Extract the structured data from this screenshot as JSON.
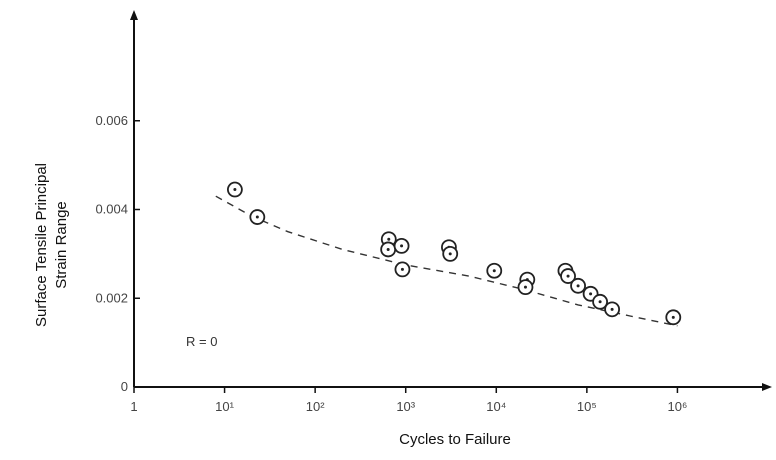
{
  "chart_data": {
    "type": "scatter",
    "title": "",
    "xlabel": "Cycles to Failure",
    "ylabel_lines": [
      "Surface Tensile Principal",
      "Strain Range"
    ],
    "x_scale": "log",
    "xlim": [
      1,
      10000000
    ],
    "ylim": [
      0,
      0.008
    ],
    "x_ticks": [
      {
        "value": 1,
        "label": "1"
      },
      {
        "value": 10,
        "label": "10¹"
      },
      {
        "value": 100,
        "label": "10²"
      },
      {
        "value": 1000,
        "label": "10³"
      },
      {
        "value": 10000,
        "label": "10⁴"
      },
      {
        "value": 100000,
        "label": "10⁵"
      },
      {
        "value": 1000000,
        "label": "10⁶"
      }
    ],
    "y_ticks": [
      {
        "value": 0,
        "label": "0"
      },
      {
        "value": 0.002,
        "label": "0.002"
      },
      {
        "value": 0.004,
        "label": "0.004"
      },
      {
        "value": 0.006,
        "label": "0.006"
      }
    ],
    "annotation": "R = 0",
    "grid": false,
    "legend": "none",
    "points": [
      {
        "x": 13,
        "y": 0.00445
      },
      {
        "x": 23,
        "y": 0.00383
      },
      {
        "x": 650,
        "y": 0.00333
      },
      {
        "x": 640,
        "y": 0.0031
      },
      {
        "x": 900,
        "y": 0.00318
      },
      {
        "x": 920,
        "y": 0.00265
      },
      {
        "x": 3000,
        "y": 0.00315
      },
      {
        "x": 3100,
        "y": 0.003
      },
      {
        "x": 9500,
        "y": 0.00262
      },
      {
        "x": 22000,
        "y": 0.00242
      },
      {
        "x": 21000,
        "y": 0.00225
      },
      {
        "x": 58000,
        "y": 0.00262
      },
      {
        "x": 62000,
        "y": 0.0025
      },
      {
        "x": 80000,
        "y": 0.00228
      },
      {
        "x": 110000,
        "y": 0.0021
      },
      {
        "x": 140000,
        "y": 0.00192
      },
      {
        "x": 190000,
        "y": 0.00175
      },
      {
        "x": 900000,
        "y": 0.00157
      }
    ],
    "fit_curve": {
      "style": "dashed",
      "x": [
        8,
        20,
        50,
        200,
        1000,
        5000,
        20000,
        80000,
        300000,
        1000000
      ],
      "y": [
        0.0043,
        0.00385,
        0.0035,
        0.0031,
        0.00275,
        0.0025,
        0.0022,
        0.00185,
        0.0016,
        0.00138
      ]
    },
    "colors": {
      "axis": "#111111",
      "marker": "#222222",
      "curve": "#333333"
    }
  }
}
